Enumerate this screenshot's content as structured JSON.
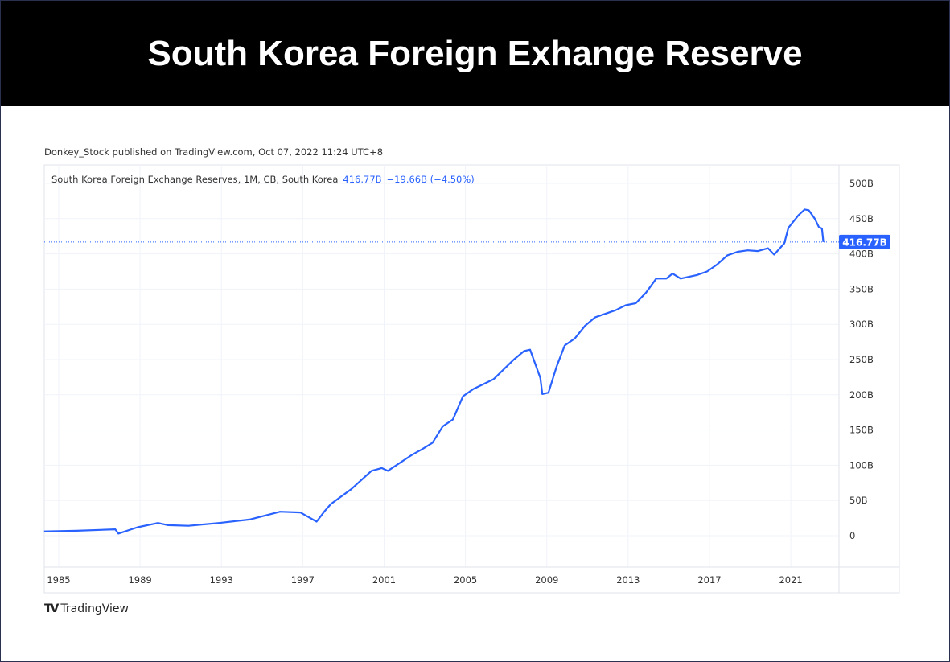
{
  "title": "South Korea Foreign Exhange Reserve",
  "published": "Donkey_Stock published on TradingView.com, Oct 07, 2022 11:24 UTC+8",
  "legend": {
    "series": "South Korea Foreign Exchange Reserves, 1M, CB, South Korea",
    "last": "416.77B",
    "change": "−19.66B (−4.50%)"
  },
  "price_label": "416.77B",
  "brand": "TradingView",
  "colors": {
    "line": "#2962ff",
    "title_bg": "#000000"
  },
  "chart_data": {
    "type": "line",
    "title": "South Korea Foreign Exchange Reserves",
    "xlabel": "",
    "ylabel": "",
    "xlim": [
      1984.4,
      2023.4
    ],
    "ylim": [
      -40,
      530
    ],
    "x_ticks": [
      1985,
      1989,
      1993,
      1997,
      2001,
      2005,
      2009,
      2013,
      2017,
      2021
    ],
    "x_tick_labels": [
      "1985",
      "1989",
      "1993",
      "1997",
      "2001",
      "2005",
      "2009",
      "2013",
      "2017",
      "2021"
    ],
    "y_ticks": [
      0,
      50,
      100,
      150,
      200,
      250,
      300,
      350,
      400,
      450,
      500
    ],
    "y_tick_labels": [
      "0",
      "50B",
      "100B",
      "150B",
      "200B",
      "250B",
      "300B",
      "350B",
      "400B",
      "450B",
      "500B"
    ],
    "grid": true,
    "series": [
      {
        "name": "South Korea Foreign Exchange Reserves",
        "unit": "B USD",
        "x": [
          1984.4,
          1986,
          1987.9,
          1988.05,
          1989,
          1990,
          1990.5,
          1991.5,
          1993,
          1994.5,
          1996,
          1997,
          1997.8,
          1998.2,
          1998.5,
          1999.5,
          2000.5,
          2001,
          2001.3,
          2002.5,
          2003,
          2003.5,
          2004,
          2004.5,
          2005,
          2005.5,
          2006.5,
          2007.5,
          2008,
          2008.3,
          2008.8,
          2008.9,
          2009.2,
          2009.6,
          2010,
          2010.5,
          2011,
          2011.5,
          2012,
          2012.5,
          2013,
          2013.5,
          2014,
          2014.5,
          2015,
          2015.3,
          2015.7,
          2016.5,
          2017,
          2017.5,
          2018,
          2018.5,
          2019,
          2019.5,
          2020,
          2020.3,
          2020.8,
          2021,
          2021.5,
          2021.8,
          2022,
          2022.3,
          2022.5,
          2022.65,
          2022.72
        ],
        "y": [
          6,
          7,
          9,
          3,
          12,
          18,
          15,
          14,
          18,
          23,
          34,
          33,
          20,
          35,
          45,
          66,
          92,
          96,
          92,
          115,
          123,
          132,
          155,
          165,
          198,
          208,
          222,
          250,
          262,
          264,
          224,
          201,
          203,
          240,
          270,
          280,
          298,
          310,
          315,
          320,
          327,
          330,
          345,
          365,
          365,
          372,
          365,
          370,
          375,
          385,
          398,
          403,
          405,
          404,
          408,
          399,
          415,
          437,
          455,
          463,
          462,
          450,
          438,
          436,
          416.77
        ]
      }
    ]
  }
}
